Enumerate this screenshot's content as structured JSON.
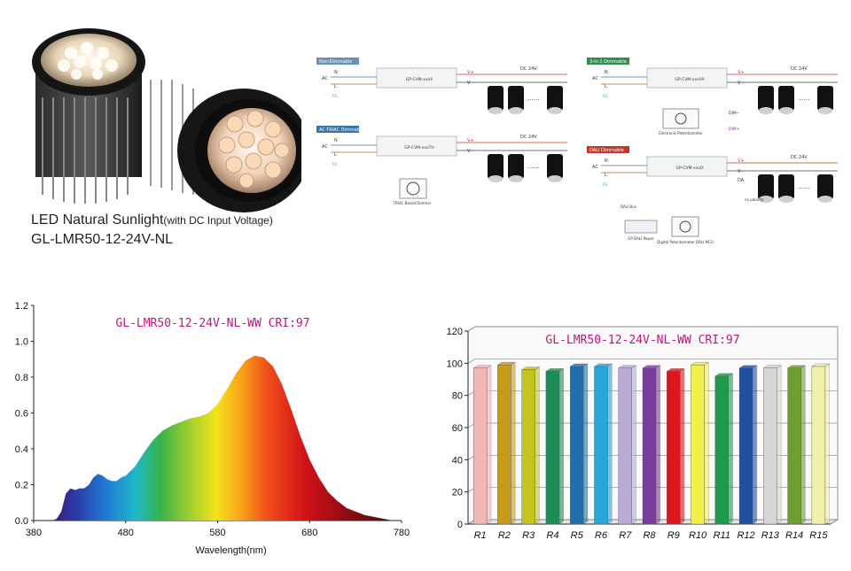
{
  "product": {
    "caption_main": "LED Natural Sunlight",
    "caption_small": "(with DC Input Voltage)",
    "model": "GL-LMR50-12-24V-NL"
  },
  "wiring": {
    "panels": [
      {
        "tag": "Non-Dimmable",
        "tag_color": "#6a8fb8",
        "driver": "GP-CVM-xxxV",
        "output": "DC 24V",
        "ac": "AC",
        "n": "N",
        "l": "L",
        "fg": "FG",
        "vplus": "V+",
        "vminus": "V−",
        "extra": ""
      },
      {
        "tag": "AC-TRIAC Dimmable",
        "tag_color": "#3c73a8",
        "driver": "GP-CVM-xxxTH",
        "output": "DC 24V",
        "ac": "AC",
        "n": "N",
        "l": "L",
        "fg": "FG",
        "vplus": "V+",
        "vminus": "V−",
        "extra": "TRIAC Based Dimmer"
      },
      {
        "tag": "3-in-1 Dimmable",
        "tag_color": "#2f8f4a",
        "driver": "GP-CVM-xxxVA",
        "output": "DC 24V",
        "ac": "AC",
        "n": "N",
        "l": "L",
        "fg": "FG",
        "vplus": "V+",
        "vminus": "V−",
        "extra": "Electronic Potentiometer",
        "dim_minus": "DIM−",
        "dim_plus": "DIM+"
      },
      {
        "tag": "DALI Dimmable",
        "tag_color": "#c0392b",
        "driver": "GP-CVM-xxxD",
        "output": "DC 24V",
        "ac": "AC",
        "n": "N",
        "l": "L",
        "fg": "FG",
        "vplus": "V+",
        "vminus": "V−",
        "da": "DA",
        "extra": "Digital Potentiometer DALI MCU",
        "dali_bus": "DALI Bus",
        "no_polarity": "no polarity",
        "dali_power": "GP-DALI Power"
      }
    ],
    "dots": "......"
  },
  "chart_data": [
    {
      "type": "area",
      "title": "GL-LMR50-12-24V-NL-WW  CRI:97",
      "xlabel": "Wavelength(nm)",
      "ylabel": "",
      "xlim": [
        380,
        780
      ],
      "ylim": [
        0,
        1.2
      ],
      "xticks": [
        380,
        480,
        580,
        680,
        780
      ],
      "yticks": [
        0.0,
        0.2,
        0.4,
        0.6,
        0.8,
        1.0,
        1.2
      ],
      "x": [
        400,
        405,
        410,
        415,
        420,
        425,
        430,
        435,
        440,
        445,
        450,
        455,
        460,
        465,
        470,
        475,
        480,
        490,
        500,
        510,
        520,
        530,
        540,
        550,
        560,
        570,
        580,
        590,
        600,
        610,
        620,
        630,
        640,
        650,
        660,
        670,
        680,
        690,
        700,
        710,
        720,
        730,
        740,
        750,
        760,
        770,
        780
      ],
      "y": [
        0.0,
        0.01,
        0.05,
        0.15,
        0.18,
        0.17,
        0.18,
        0.18,
        0.2,
        0.24,
        0.26,
        0.25,
        0.23,
        0.22,
        0.22,
        0.24,
        0.25,
        0.3,
        0.38,
        0.45,
        0.5,
        0.53,
        0.55,
        0.57,
        0.58,
        0.6,
        0.65,
        0.73,
        0.82,
        0.89,
        0.92,
        0.91,
        0.86,
        0.76,
        0.62,
        0.47,
        0.34,
        0.24,
        0.16,
        0.11,
        0.07,
        0.05,
        0.03,
        0.02,
        0.01,
        0.0,
        0.0
      ],
      "grid": false
    },
    {
      "type": "bar",
      "title": "GL-LMR50-12-24V-NL-WW  CRI:97",
      "categories": [
        "R1",
        "R2",
        "R3",
        "R4",
        "R5",
        "R6",
        "R7",
        "R8",
        "R9",
        "R10",
        "R11",
        "R12",
        "R13",
        "R14",
        "R15"
      ],
      "values": [
        97,
        99,
        96,
        95,
        98,
        98,
        97,
        97,
        95,
        99,
        92,
        97,
        97,
        97,
        98
      ],
      "colors": [
        "#f3b6b6",
        "#c89a1a",
        "#c4c41e",
        "#1e8c56",
        "#1f6fae",
        "#28a6dc",
        "#b9a9d6",
        "#7a3b9a",
        "#d9171d",
        "#f2ee4a",
        "#1e9a4a",
        "#1f4f9e",
        "#d6d6d6",
        "#6f9e30",
        "#f2efa8"
      ],
      "ylim": [
        0,
        120
      ],
      "yticks": [
        0,
        20,
        40,
        60,
        80,
        100,
        120
      ],
      "grid": true
    }
  ]
}
